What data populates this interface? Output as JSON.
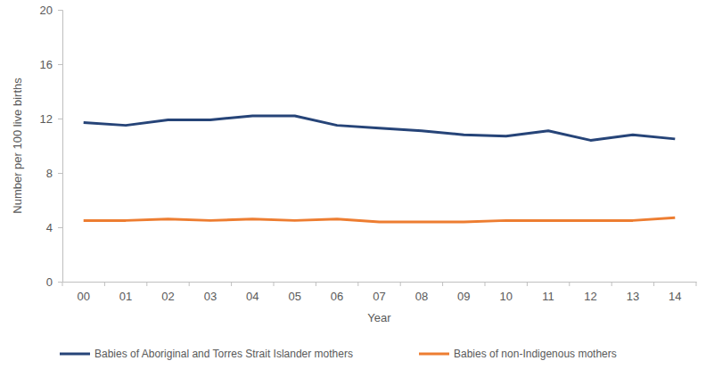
{
  "chart_data": {
    "type": "line",
    "x_label": "Year",
    "y_label": "Number per 100 live births",
    "categories": [
      "00",
      "01",
      "02",
      "03",
      "04",
      "05",
      "06",
      "07",
      "08",
      "09",
      "10",
      "11",
      "12",
      "13",
      "14"
    ],
    "series": [
      {
        "name": "Babies of Aboriginal and Torres Strait Islander mothers",
        "color": "#264478",
        "values": [
          11.7,
          11.5,
          11.9,
          11.9,
          12.2,
          12.2,
          11.5,
          11.3,
          11.1,
          10.8,
          10.7,
          11.1,
          10.4,
          10.8,
          10.5
        ]
      },
      {
        "name": "Babies of non-Indigenous mothers",
        "color": "#ED7D31",
        "values": [
          4.5,
          4.5,
          4.6,
          4.5,
          4.6,
          4.5,
          4.6,
          4.4,
          4.4,
          4.4,
          4.5,
          4.5,
          4.5,
          4.5,
          4.7
        ]
      }
    ],
    "ylim": [
      0,
      20
    ],
    "yticks": [
      0,
      4,
      8,
      12,
      16,
      20
    ],
    "grid": false,
    "legend": "bottom"
  }
}
